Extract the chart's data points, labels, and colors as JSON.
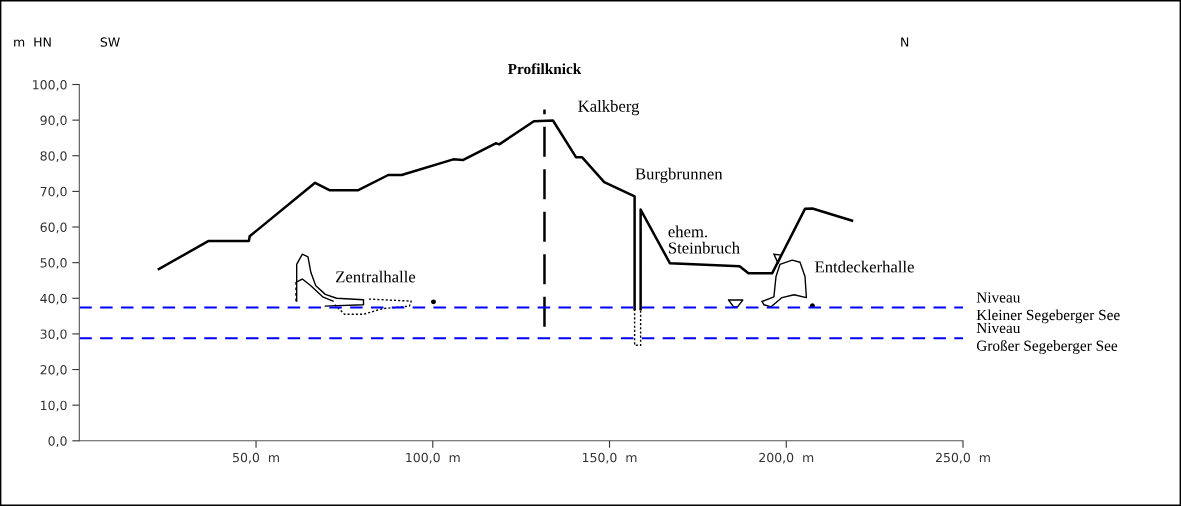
{
  "chart_data": {
    "type": "line",
    "ylabel": "m  HN",
    "xlim": [
      0,
      250
    ],
    "ylim": [
      0,
      100
    ],
    "xticks": [
      {
        "value": 50,
        "label": "50,0  m"
      },
      {
        "value": 100,
        "label": "100,0  m"
      },
      {
        "value": 150,
        "label": "150,0  m"
      },
      {
        "value": 200,
        "label": "200,0  m"
      },
      {
        "value": 250,
        "label": "250,0  m"
      }
    ],
    "yticks": [
      {
        "value": 0,
        "label": "0,0"
      },
      {
        "value": 10,
        "label": "10,0"
      },
      {
        "value": 20,
        "label": "20,0"
      },
      {
        "value": 30,
        "label": "30,0"
      },
      {
        "value": 40,
        "label": "40,0"
      },
      {
        "value": 50,
        "label": "50,0"
      },
      {
        "value": 60,
        "label": "60,0"
      },
      {
        "value": 70,
        "label": "70,0"
      },
      {
        "value": 80,
        "label": "80,0"
      },
      {
        "value": 90,
        "label": "90,0"
      },
      {
        "value": 100,
        "label": "100,0"
      }
    ],
    "grid": false,
    "series": [
      {
        "color": "#000000",
        "line_style": "solid",
        "x": [
          22.5,
          36.6,
          48,
          48.2,
          66.7,
          70.9,
          78.8,
          87.4,
          91.2,
          105.8,
          108.5,
          117.8,
          118.8,
          128.6,
          134,
          140.5,
          142.2,
          148.5,
          157.1,
          157.1
        ],
        "values": [
          48.2,
          56.1,
          56.1,
          57.4,
          72.4,
          70.3,
          70.3,
          74.6,
          74.6,
          79,
          78.8,
          83.5,
          83.2,
          89.7,
          89.9,
          79.6,
          79.6,
          72.6,
          68.6,
          37
        ]
      },
      {
        "color": "#000000",
        "line_style": "solid",
        "x": [
          158.8,
          158.8,
          167.1,
          186.8,
          189.3,
          196,
          205.3,
          207.4,
          218.6
        ],
        "values": [
          37,
          64.9,
          49.8,
          49,
          47,
          47,
          65.1,
          65.2,
          61.8
        ]
      },
      {
        "color": "#000000",
        "line_style": "dotted",
        "x": [
          157.1,
          157.1,
          158.8,
          158.8
        ],
        "values": [
          37,
          26.8,
          26.8,
          37
        ]
      },
      {
        "color": "#000000",
        "line_style": "dashed",
        "x": [
          131.6,
          131.6
        ],
        "values": [
          32,
          93
        ]
      }
    ],
    "ref_lines": [
      {
        "axis": "y",
        "value": 37.4,
        "label": "Niveau\nKleiner Segeberger See",
        "color": "#0000ff",
        "line_style": "dashed"
      },
      {
        "axis": "y",
        "value": 28.8,
        "label": "Niveau\nGroßer Segeberger See",
        "color": "#0000ff",
        "line_style": "dashed"
      }
    ],
    "annotations": [
      "SW",
      "N",
      "Profilknick",
      "Kalkberg",
      "Burgbrunnen",
      "ehem.\nSteinbruch",
      "Zentralhalle",
      "Entdeckerhalle"
    ]
  }
}
